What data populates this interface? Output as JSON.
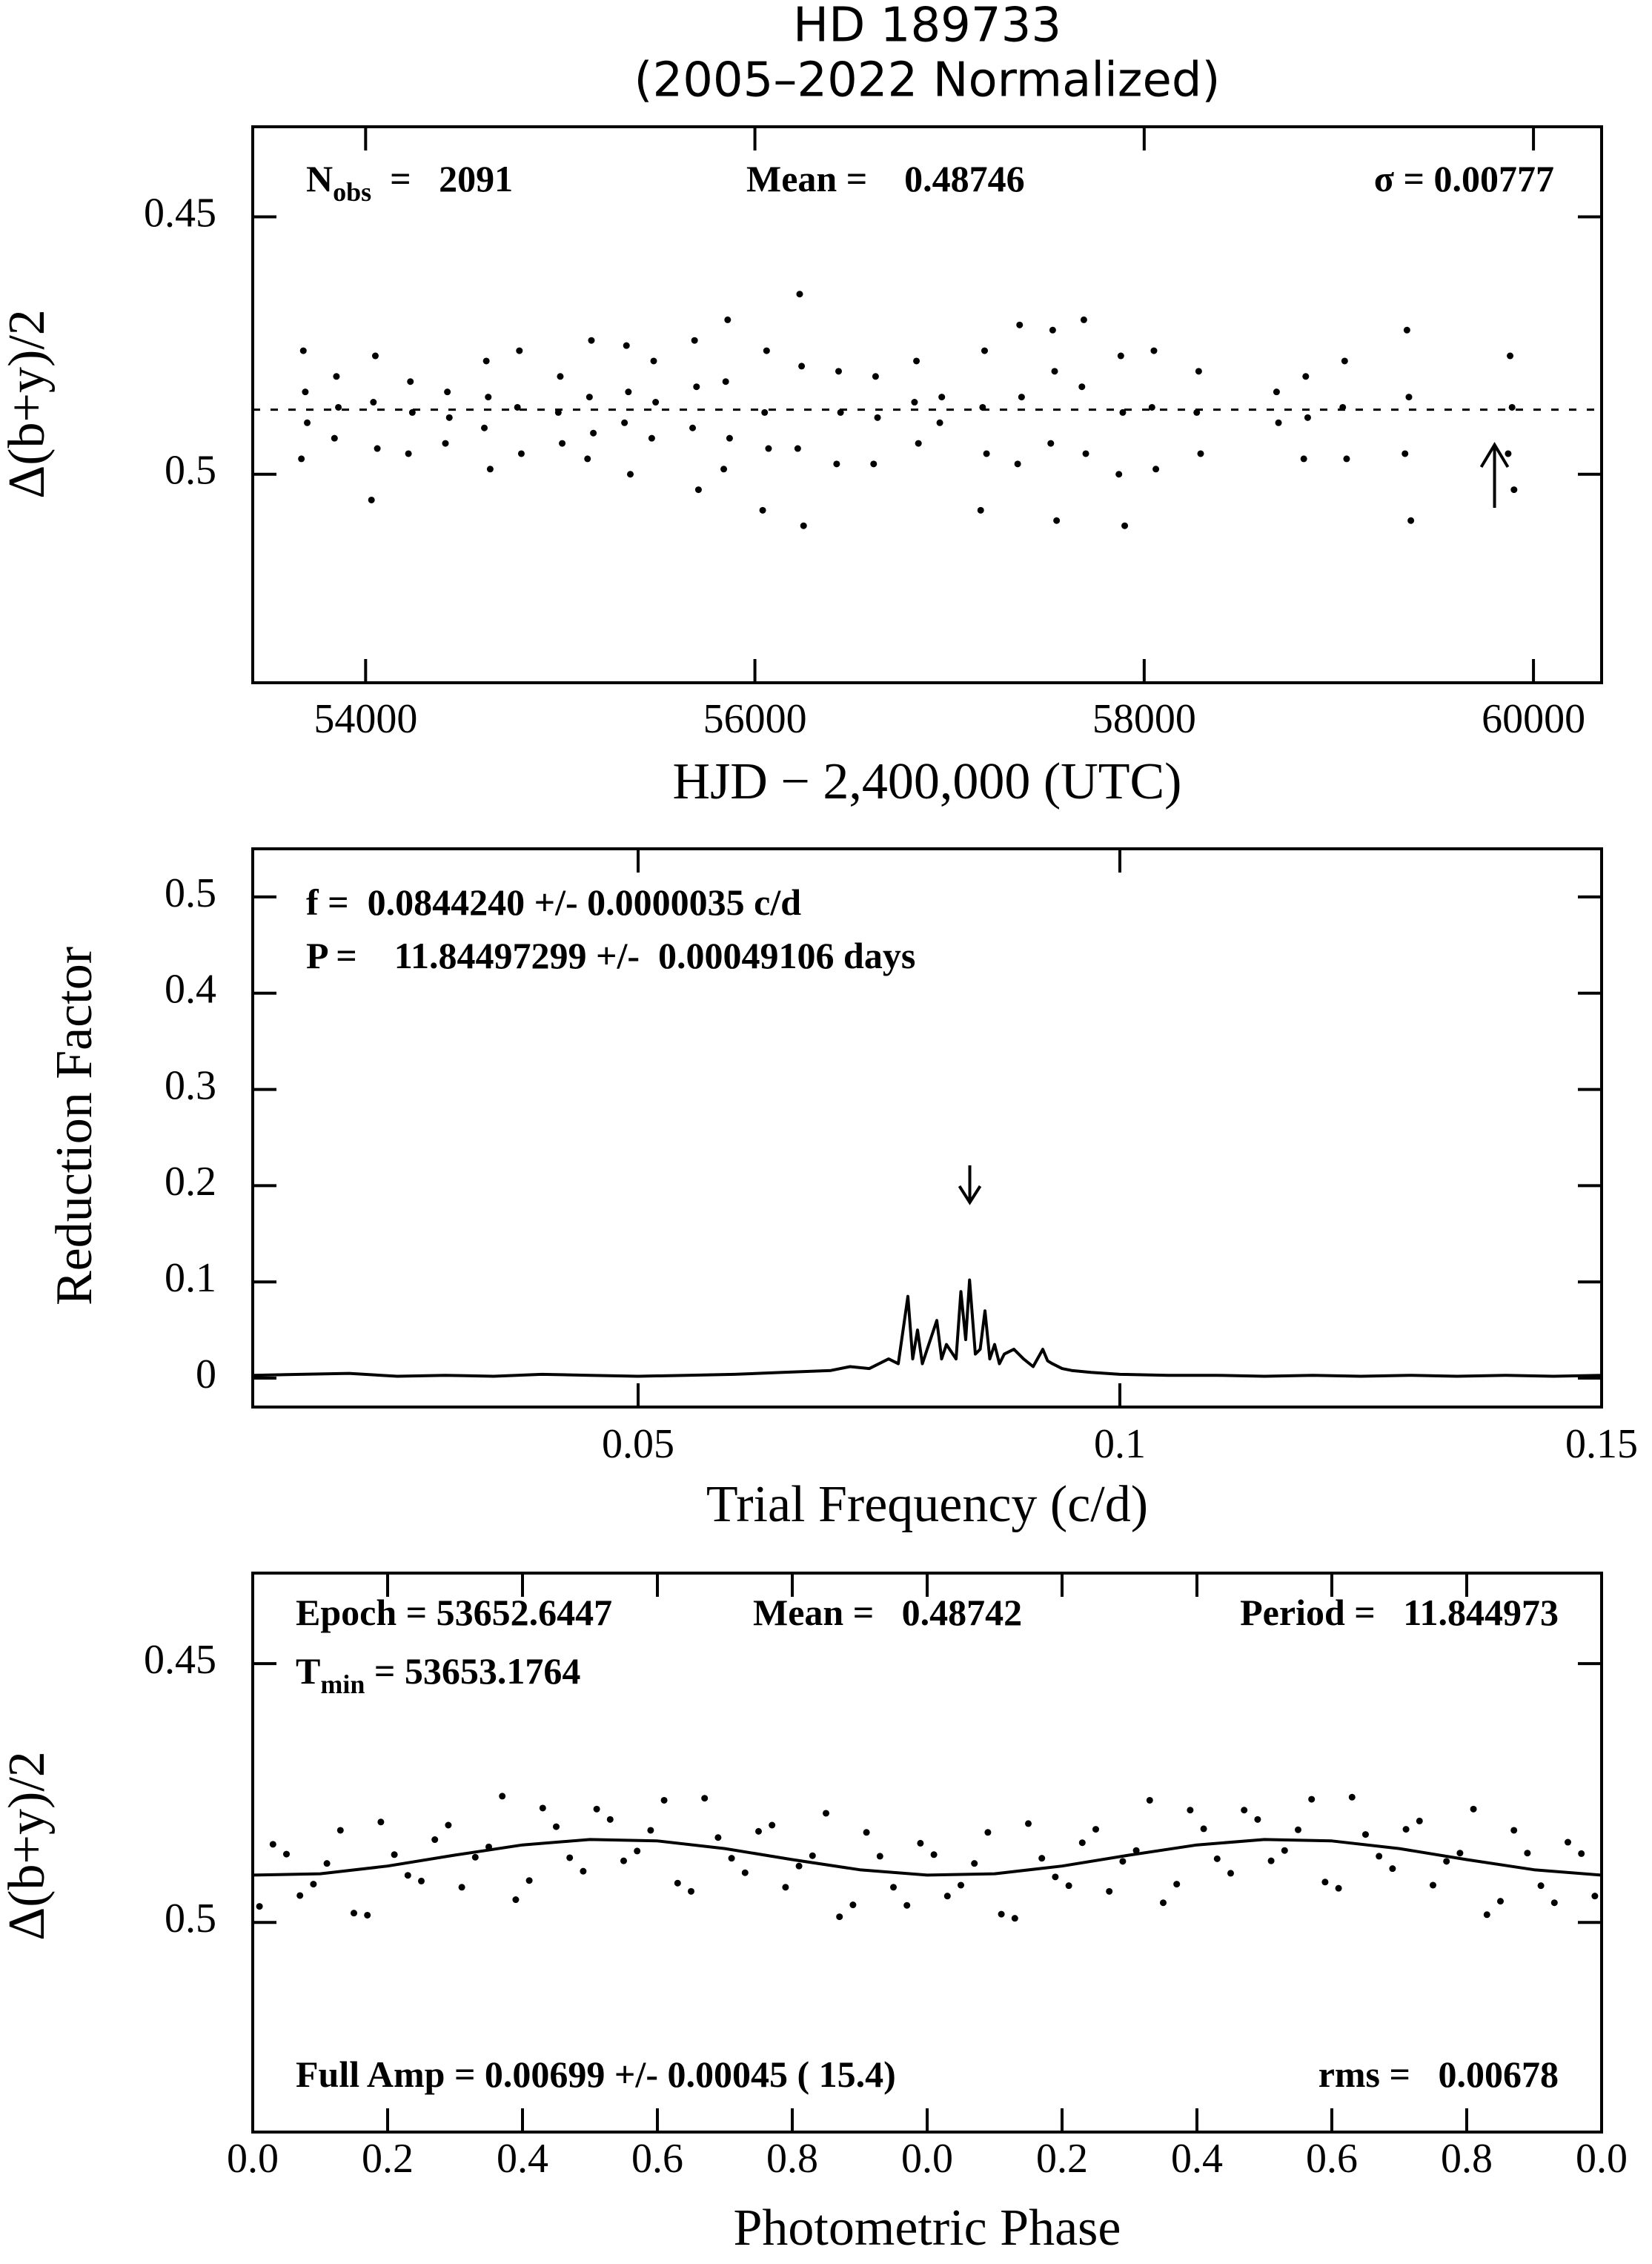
{
  "chart_data": [
    {
      "type": "scatter",
      "title": "HD 189733",
      "subtitle": "(2005–2022 Normalized)",
      "xlabel": "HJD − 2,400,000 (UTC)",
      "ylabel": "Δ(b+y)/2",
      "xlim": [
        53420,
        60350
      ],
      "xticks": [
        54000,
        56000,
        58000,
        60000
      ],
      "ylim": [
        0.5405,
        0.4325
      ],
      "yticks": [
        0.45,
        0.5
      ],
      "mean_line": 0.48746,
      "arrow": 59800,
      "color": "#000000",
      "annotations": [
        [
          {
            "text": "N"
          },
          {
            "text": "obs",
            "sub": true
          },
          {
            "text": "  =   2091"
          }
        ],
        [
          {
            "text": "Mean =    0.48746"
          }
        ],
        [
          {
            "text": "σ = 0.00777"
          }
        ]
      ],
      "points": [
        [
          53680,
          0.476
        ],
        [
          53690,
          0.484
        ],
        [
          53700,
          0.49
        ],
        [
          53670,
          0.497
        ],
        [
          53850,
          0.481
        ],
        [
          53860,
          0.487
        ],
        [
          53840,
          0.493
        ],
        [
          54050,
          0.477
        ],
        [
          54040,
          0.486
        ],
        [
          54060,
          0.495
        ],
        [
          54030,
          0.505
        ],
        [
          54230,
          0.482
        ],
        [
          54240,
          0.488
        ],
        [
          54220,
          0.496
        ],
        [
          54420,
          0.484
        ],
        [
          54430,
          0.489
        ],
        [
          54410,
          0.494
        ],
        [
          54620,
          0.478
        ],
        [
          54630,
          0.485
        ],
        [
          54610,
          0.491
        ],
        [
          54640,
          0.499
        ],
        [
          54790,
          0.476
        ],
        [
          54780,
          0.487
        ],
        [
          54800,
          0.496
        ],
        [
          55000,
          0.481
        ],
        [
          54990,
          0.488
        ],
        [
          55010,
          0.494
        ],
        [
          55160,
          0.474
        ],
        [
          55150,
          0.485
        ],
        [
          55170,
          0.492
        ],
        [
          55140,
          0.497
        ],
        [
          55340,
          0.475
        ],
        [
          55350,
          0.484
        ],
        [
          55330,
          0.49
        ],
        [
          55360,
          0.5
        ],
        [
          55480,
          0.478
        ],
        [
          55490,
          0.486
        ],
        [
          55470,
          0.493
        ],
        [
          55690,
          0.474
        ],
        [
          55700,
          0.483
        ],
        [
          55680,
          0.491
        ],
        [
          55710,
          0.503
        ],
        [
          55860,
          0.47
        ],
        [
          55850,
          0.482
        ],
        [
          55870,
          0.493
        ],
        [
          55840,
          0.499
        ],
        [
          56060,
          0.476
        ],
        [
          56050,
          0.488
        ],
        [
          56070,
          0.495
        ],
        [
          56040,
          0.507
        ],
        [
          56230,
          0.465
        ],
        [
          56240,
          0.479
        ],
        [
          56220,
          0.495
        ],
        [
          56250,
          0.51
        ],
        [
          56430,
          0.48
        ],
        [
          56440,
          0.488
        ],
        [
          56420,
          0.498
        ],
        [
          56620,
          0.481
        ],
        [
          56630,
          0.489
        ],
        [
          56610,
          0.498
        ],
        [
          56830,
          0.478
        ],
        [
          56820,
          0.486
        ],
        [
          56840,
          0.494
        ],
        [
          56960,
          0.485
        ],
        [
          56950,
          0.49
        ],
        [
          57180,
          0.476
        ],
        [
          57170,
          0.487
        ],
        [
          57190,
          0.496
        ],
        [
          57160,
          0.507
        ],
        [
          57360,
          0.471
        ],
        [
          57370,
          0.485
        ],
        [
          57350,
          0.498
        ],
        [
          57530,
          0.472
        ],
        [
          57540,
          0.48
        ],
        [
          57520,
          0.494
        ],
        [
          57550,
          0.509
        ],
        [
          57690,
          0.47
        ],
        [
          57680,
          0.483
        ],
        [
          57700,
          0.496
        ],
        [
          57880,
          0.477
        ],
        [
          57890,
          0.488
        ],
        [
          57870,
          0.5
        ],
        [
          57900,
          0.51
        ],
        [
          58050,
          0.476
        ],
        [
          58040,
          0.487
        ],
        [
          58060,
          0.499
        ],
        [
          58280,
          0.48
        ],
        [
          58270,
          0.488
        ],
        [
          58290,
          0.496
        ],
        [
          58680,
          0.484
        ],
        [
          58690,
          0.49
        ],
        [
          58830,
          0.481
        ],
        [
          58840,
          0.489
        ],
        [
          58820,
          0.497
        ],
        [
          59030,
          0.478
        ],
        [
          59020,
          0.487
        ],
        [
          59040,
          0.497
        ],
        [
          59350,
          0.472
        ],
        [
          59360,
          0.485
        ],
        [
          59340,
          0.496
        ],
        [
          59370,
          0.509
        ],
        [
          59880,
          0.477
        ],
        [
          59890,
          0.487
        ],
        [
          59870,
          0.496
        ],
        [
          59900,
          0.503
        ]
      ]
    },
    {
      "type": "line",
      "xlabel": "Trial Frequency (c/d)",
      "ylabel": "Reduction Factor",
      "xlim": [
        0.01,
        0.15
      ],
      "xticks": [
        0.05,
        0.1,
        0.15
      ],
      "ylim": [
        -0.03,
        0.55
      ],
      "yticks": [
        0,
        0.1,
        0.2,
        0.3,
        0.4,
        0.5
      ],
      "arrow": 0.084424,
      "color": "#000000",
      "annotations": [
        [
          {
            "text": "f =  0.0844240 +/- 0.0000035 c/d"
          }
        ],
        [
          {
            "text": "P =    11.84497299 +/-  0.00049106 days"
          }
        ]
      ],
      "x": [
        0.01,
        0.015,
        0.02,
        0.025,
        0.03,
        0.035,
        0.04,
        0.045,
        0.05,
        0.055,
        0.06,
        0.065,
        0.07,
        0.072,
        0.074,
        0.076,
        0.077,
        0.078,
        0.0785,
        0.079,
        0.0795,
        0.08,
        0.081,
        0.0815,
        0.082,
        0.083,
        0.0835,
        0.084,
        0.0844,
        0.085,
        0.0855,
        0.086,
        0.0865,
        0.087,
        0.0875,
        0.088,
        0.089,
        0.09,
        0.091,
        0.092,
        0.0925,
        0.093,
        0.094,
        0.095,
        0.097,
        0.1,
        0.105,
        0.11,
        0.115,
        0.12,
        0.125,
        0.13,
        0.135,
        0.14,
        0.145,
        0.15
      ],
      "values": [
        0.003,
        0.004,
        0.005,
        0.002,
        0.003,
        0.002,
        0.004,
        0.003,
        0.002,
        0.003,
        0.004,
        0.006,
        0.008,
        0.012,
        0.01,
        0.02,
        0.015,
        0.085,
        0.02,
        0.05,
        0.015,
        0.03,
        0.06,
        0.02,
        0.035,
        0.02,
        0.09,
        0.04,
        0.102,
        0.025,
        0.03,
        0.07,
        0.02,
        0.035,
        0.015,
        0.025,
        0.03,
        0.02,
        0.012,
        0.03,
        0.018,
        0.015,
        0.01,
        0.008,
        0.006,
        0.004,
        0.003,
        0.003,
        0.002,
        0.003,
        0.002,
        0.003,
        0.002,
        0.003,
        0.002,
        0.003
      ]
    },
    {
      "type": "scatter",
      "xlabel": "Photometric Phase",
      "ylabel": "Δ(b+y)/2",
      "xlim": [
        0,
        2
      ],
      "xticks": [
        {
          "value": 0,
          "label": "0.0"
        },
        0.2,
        0.4,
        0.6,
        0.8,
        {
          "value": 1,
          "label": "0.0"
        },
        {
          "value": 1.2,
          "label": "0.2"
        },
        {
          "value": 1.4,
          "label": "0.4"
        },
        {
          "value": 1.6,
          "label": "0.6"
        },
        {
          "value": 1.8,
          "label": "0.8"
        },
        {
          "value": 2,
          "label": "0.0"
        }
      ],
      "ylim": [
        0.5405,
        0.4325
      ],
      "yticks": [
        0.45,
        0.5
      ],
      "color": "#000000",
      "annotations": [
        [
          {
            "text": "Epoch = 53652.6447"
          }
        ],
        [
          {
            "text": "Mean =   0.48742"
          }
        ],
        [
          {
            "text": "Period =   11.844973"
          }
        ],
        [
          {
            "text": "T"
          },
          {
            "text": "min",
            "sub": true
          },
          {
            "text": " = 53653.1764"
          }
        ],
        [
          {
            "text": "Full Amp = 0.00699 +/- 0.00045 ( 15.4)"
          }
        ],
        [
          {
            "text": "rms =   0.00678"
          }
        ]
      ],
      "fit": {
        "x": [
          0,
          0.1,
          0.2,
          0.3,
          0.4,
          0.5,
          0.6,
          0.7,
          0.8,
          0.9,
          1,
          1.1,
          1.2,
          1.3,
          1.4,
          1.5,
          1.6,
          1.7,
          1.8,
          1.9,
          2
        ],
        "values": [
          0.49086,
          0.49059,
          0.48911,
          0.48698,
          0.48502,
          0.48398,
          0.48425,
          0.48573,
          0.48786,
          0.48982,
          0.49086,
          0.49059,
          0.48911,
          0.48698,
          0.48502,
          0.48398,
          0.48425,
          0.48573,
          0.48786,
          0.48982,
          0.49086
        ]
      },
      "points": [
        [
          0.01,
          0.4969
        ],
        [
          0.05,
          0.4868
        ],
        [
          0.09,
          0.4926
        ],
        [
          0.13,
          0.4822
        ],
        [
          0.17,
          0.4986
        ],
        [
          0.21,
          0.4869
        ],
        [
          0.25,
          0.492
        ],
        [
          0.29,
          0.4812
        ],
        [
          0.33,
          0.4874
        ],
        [
          0.37,
          0.4756
        ],
        [
          0.41,
          0.4919
        ],
        [
          0.45,
          0.4815
        ],
        [
          0.49,
          0.4901
        ],
        [
          0.53,
          0.4801
        ],
        [
          0.57,
          0.4862
        ],
        [
          0.61,
          0.4764
        ],
        [
          0.65,
          0.494
        ],
        [
          0.69,
          0.4836
        ],
        [
          0.73,
          0.4904
        ],
        [
          0.77,
          0.4812
        ],
        [
          0.81,
          0.4891
        ],
        [
          0.85,
          0.4789
        ],
        [
          0.89,
          0.4966
        ],
        [
          0.93,
          0.4872
        ],
        [
          0.97,
          0.4967
        ],
        [
          1.01,
          0.4869
        ],
        [
          1.05,
          0.4928
        ],
        [
          1.09,
          0.4826
        ],
        [
          1.13,
          0.4992
        ],
        [
          1.17,
          0.4876
        ],
        [
          1.21,
          0.4929
        ],
        [
          1.25,
          0.482
        ],
        [
          1.29,
          0.4882
        ],
        [
          1.33,
          0.4764
        ],
        [
          1.37,
          0.4926
        ],
        [
          1.41,
          0.4819
        ],
        [
          1.45,
          0.4905
        ],
        [
          1.49,
          0.4801
        ],
        [
          1.53,
          0.4861
        ],
        [
          1.57,
          0.4762
        ],
        [
          1.61,
          0.4934
        ],
        [
          1.65,
          0.483
        ],
        [
          1.69,
          0.4896
        ],
        [
          1.73,
          0.4804
        ],
        [
          1.77,
          0.4882
        ],
        [
          1.81,
          0.4781
        ],
        [
          1.85,
          0.4959
        ],
        [
          1.89,
          0.4866
        ],
        [
          1.93,
          0.4962
        ],
        [
          1.97,
          0.4867
        ],
        [
          0.03,
          0.4849
        ],
        [
          0.07,
          0.4948
        ],
        [
          0.11,
          0.4886
        ],
        [
          0.15,
          0.4982
        ],
        [
          0.19,
          0.4806
        ],
        [
          0.23,
          0.4909
        ],
        [
          0.27,
          0.484
        ],
        [
          0.31,
          0.4932
        ],
        [
          0.35,
          0.4854
        ],
        [
          0.39,
          0.4956
        ],
        [
          0.43,
          0.4779
        ],
        [
          0.47,
          0.4875
        ],
        [
          0.51,
          0.4781
        ],
        [
          0.55,
          0.4881
        ],
        [
          0.59,
          0.4822
        ],
        [
          0.63,
          0.4924
        ],
        [
          0.67,
          0.476
        ],
        [
          0.71,
          0.4876
        ],
        [
          0.75,
          0.4824
        ],
        [
          0.79,
          0.4932
        ],
        [
          0.83,
          0.4871
        ],
        [
          0.87,
          0.4989
        ],
        [
          0.91,
          0.4826
        ],
        [
          0.95,
          0.4932
        ],
        [
          0.99,
          0.4847
        ],
        [
          1.03,
          0.4949
        ],
        [
          1.07,
          0.4886
        ],
        [
          1.11,
          0.4984
        ],
        [
          1.15,
          0.4809
        ],
        [
          1.19,
          0.4912
        ],
        [
          1.23,
          0.4846
        ],
        [
          1.27,
          0.494
        ],
        [
          1.31,
          0.4861
        ],
        [
          1.35,
          0.4962
        ],
        [
          1.39,
          0.4783
        ],
        [
          1.43,
          0.4877
        ],
        [
          1.47,
          0.4783
        ],
        [
          1.51,
          0.4881
        ],
        [
          1.55,
          0.4821
        ],
        [
          1.59,
          0.4922
        ],
        [
          1.63,
          0.4758
        ],
        [
          1.67,
          0.4872
        ],
        [
          1.71,
          0.482
        ],
        [
          1.75,
          0.4928
        ],
        [
          1.79,
          0.4866
        ],
        [
          1.83,
          0.4985
        ],
        [
          1.87,
          0.4822
        ],
        [
          1.91,
          0.4929
        ],
        [
          1.95,
          0.4845
        ],
        [
          1.99,
          0.4949
        ]
      ]
    }
  ]
}
